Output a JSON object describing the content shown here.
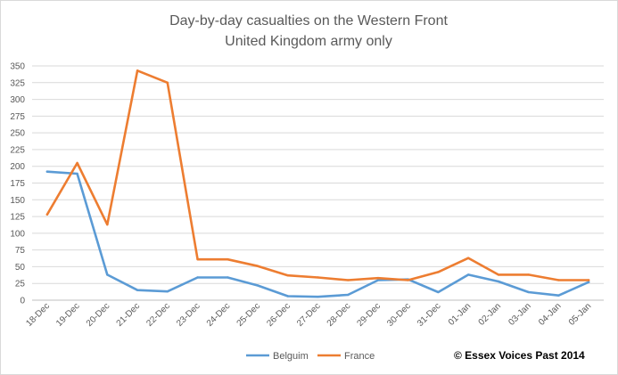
{
  "chart_data": {
    "type": "line",
    "title": "Day-by-day casualties on the Western Front",
    "subtitle": "United Kingdom army only",
    "xlabel": "",
    "ylabel": "",
    "ylim": [
      0,
      350
    ],
    "yticks": [
      "0",
      "25",
      "50",
      "75",
      "100",
      "125",
      "150",
      "175",
      "200",
      "225",
      "250",
      "275",
      "300",
      "325",
      "350"
    ],
    "categories": [
      "18-Dec",
      "19-Dec",
      "20-Dec",
      "21-Dec",
      "22-Dec",
      "23-Dec",
      "24-Dec",
      "25-Dec",
      "26-Dec",
      "27-Dec",
      "28-Dec",
      "29-Dec",
      "30-Dec",
      "31-Dec",
      "01-Jan",
      "02-Jan",
      "03-Jan",
      "04-Jan",
      "05-Jan"
    ],
    "series": [
      {
        "name": "Belguim",
        "color": "#5b9bd5",
        "values": [
          192,
          189,
          38,
          15,
          13,
          34,
          34,
          22,
          6,
          5,
          8,
          30,
          31,
          12,
          38,
          28,
          12,
          7,
          27
        ]
      },
      {
        "name": "France",
        "color": "#ed7d31",
        "values": [
          128,
          205,
          113,
          343,
          325,
          61,
          61,
          51,
          37,
          34,
          30,
          33,
          30,
          42,
          63,
          38,
          38,
          30,
          30
        ]
      }
    ],
    "grid": true,
    "legend_position": "bottom",
    "annotation": "© Essex Voices Past 2014"
  }
}
